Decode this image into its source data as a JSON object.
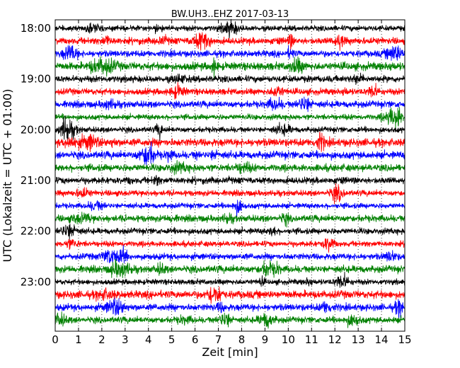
{
  "chart_data": {
    "type": "line",
    "title": "BW.UH3..EHZ 2017-03-13",
    "xlabel": "Zeit  [min]",
    "ylabel": "UTC (Lokalzeit = UTC + 01:00)",
    "xlim": [
      0,
      15
    ],
    "x_ticks": [
      "0",
      "1",
      "2",
      "3",
      "4",
      "5",
      "6",
      "7",
      "8",
      "9",
      "10",
      "11",
      "12",
      "13",
      "14",
      "15"
    ],
    "y_ticks": [
      "18:00",
      "19:00",
      "20:00",
      "21:00",
      "22:00",
      "23:00"
    ],
    "trace_interval_min": 15,
    "grid": "vertical-dotted",
    "trace_colors": [
      "#000000",
      "#ff0000",
      "#0000ff",
      "#008000"
    ],
    "series": [
      {
        "start": "18:00",
        "color": "#000000"
      },
      {
        "start": "18:15",
        "color": "#ff0000"
      },
      {
        "start": "18:30",
        "color": "#0000ff"
      },
      {
        "start": "18:45",
        "color": "#008000"
      },
      {
        "start": "19:00",
        "color": "#000000"
      },
      {
        "start": "19:15",
        "color": "#ff0000"
      },
      {
        "start": "19:30",
        "color": "#0000ff"
      },
      {
        "start": "19:45",
        "color": "#008000"
      },
      {
        "start": "20:00",
        "color": "#000000"
      },
      {
        "start": "20:15",
        "color": "#ff0000"
      },
      {
        "start": "20:30",
        "color": "#0000ff"
      },
      {
        "start": "20:45",
        "color": "#008000"
      },
      {
        "start": "21:00",
        "color": "#000000"
      },
      {
        "start": "21:15",
        "color": "#ff0000"
      },
      {
        "start": "21:30",
        "color": "#0000ff"
      },
      {
        "start": "21:45",
        "color": "#008000"
      },
      {
        "start": "22:00",
        "color": "#000000"
      },
      {
        "start": "22:15",
        "color": "#ff0000"
      },
      {
        "start": "22:30",
        "color": "#0000ff"
      },
      {
        "start": "22:45",
        "color": "#008000"
      },
      {
        "start": "23:00",
        "color": "#000000"
      },
      {
        "start": "23:15",
        "color": "#ff0000"
      },
      {
        "start": "23:30",
        "color": "#0000ff"
      },
      {
        "start": "23:45",
        "color": "#008000"
      }
    ]
  }
}
